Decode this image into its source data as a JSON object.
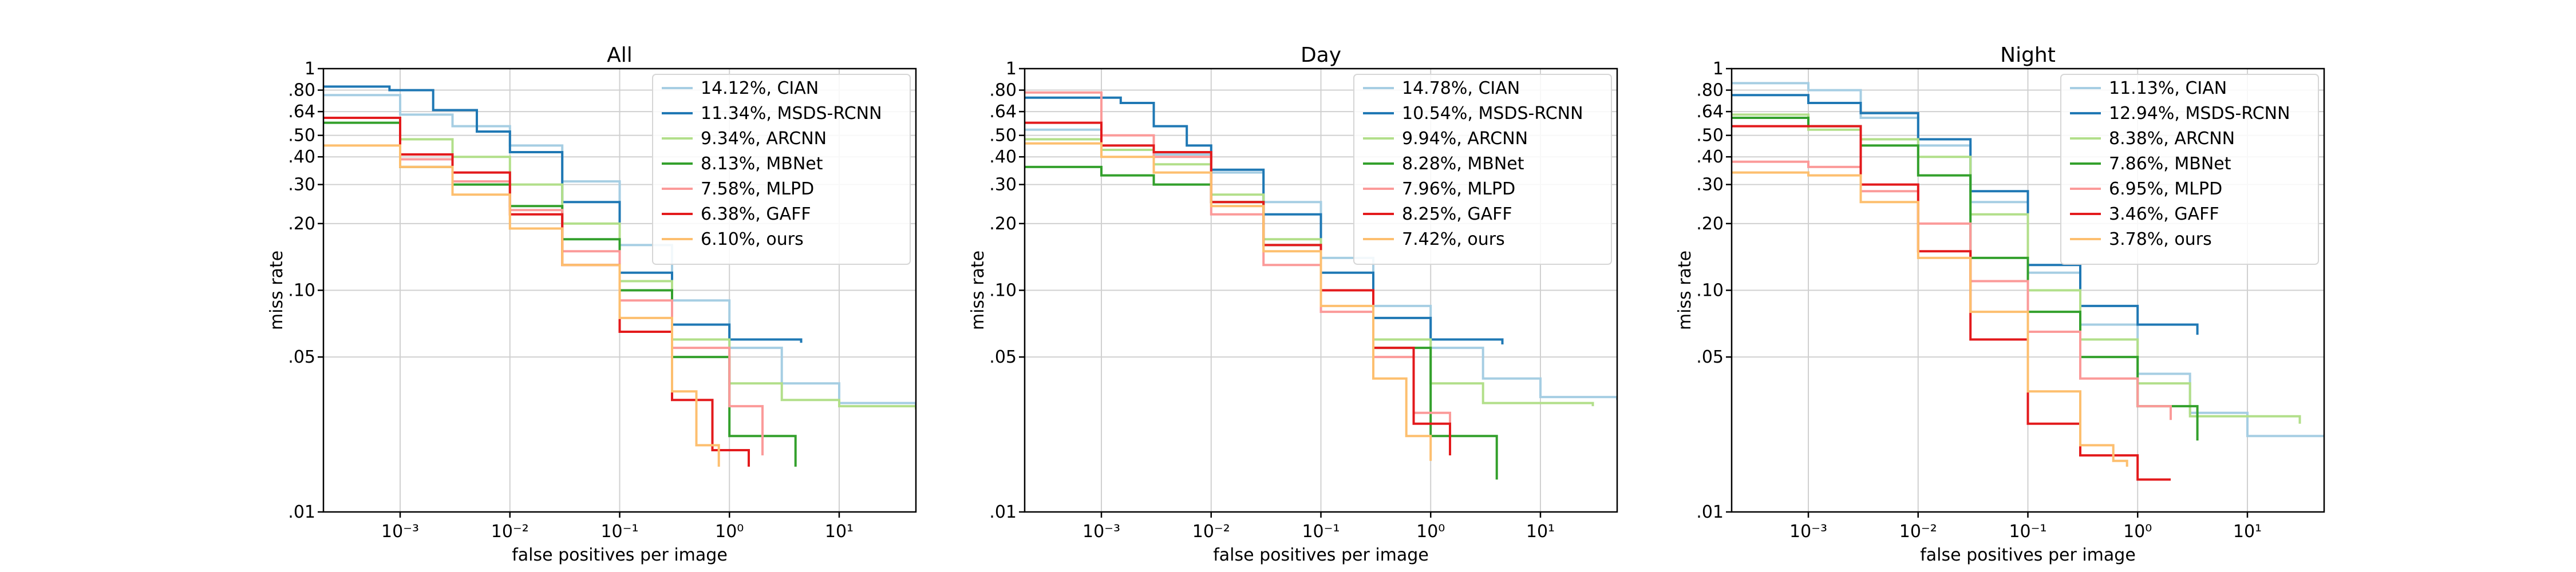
{
  "chart_data": [
    {
      "type": "line",
      "title": "All",
      "xlabel": "false positives per image",
      "ylabel": "miss rate",
      "xscale": "log",
      "yscale": "log",
      "xlim": [
        0.0002,
        50
      ],
      "ylim": [
        0.01,
        1
      ],
      "xticks": [
        0.001,
        0.01,
        0.1,
        1,
        10
      ],
      "xtick_labels": [
        "10⁻³",
        "10⁻²",
        "10⁻¹",
        "10⁰",
        "10¹"
      ],
      "yticks": [
        0.01,
        0.05,
        0.1,
        0.2,
        0.3,
        0.4,
        0.5,
        0.64,
        0.8,
        1
      ],
      "ytick_labels": [
        ".01",
        ".05",
        ".10",
        ".20",
        ".30",
        ".40",
        ".50",
        ".64",
        ".80",
        "1"
      ],
      "grid": true,
      "legend_position": "top-right",
      "series": [
        {
          "name": "14.12%, CIAN",
          "color": "#a6cee3",
          "x": [
            0.0002,
            0.001,
            0.003,
            0.01,
            0.03,
            0.1,
            0.3,
            1,
            3,
            10,
            50
          ],
          "y": [
            0.76,
            0.62,
            0.55,
            0.45,
            0.31,
            0.16,
            0.09,
            0.055,
            0.038,
            0.031,
            0.029
          ]
        },
        {
          "name": "11.34%, MSDS-RCNN",
          "color": "#1f78b4",
          "x": [
            0.0002,
            0.0008,
            0.002,
            0.005,
            0.01,
            0.03,
            0.1,
            0.3,
            1,
            4.5
          ],
          "y": [
            0.83,
            0.8,
            0.65,
            0.52,
            0.42,
            0.25,
            0.12,
            0.07,
            0.06,
            0.058
          ]
        },
        {
          "name": "9.34%, ARCNN",
          "color": "#b2df8a",
          "x": [
            0.0002,
            0.001,
            0.003,
            0.01,
            0.03,
            0.1,
            0.3,
            1,
            3,
            10,
            50
          ],
          "y": [
            0.6,
            0.48,
            0.4,
            0.3,
            0.2,
            0.11,
            0.06,
            0.038,
            0.032,
            0.03,
            0.029
          ]
        },
        {
          "name": "8.13%, MBNet",
          "color": "#33a02c",
          "x": [
            0.0002,
            0.001,
            0.003,
            0.01,
            0.03,
            0.1,
            0.3,
            1,
            4
          ],
          "y": [
            0.57,
            0.36,
            0.3,
            0.24,
            0.17,
            0.1,
            0.05,
            0.022,
            0.016
          ]
        },
        {
          "name": "7.58%, MLPD",
          "color": "#fb9a99",
          "x": [
            0.0002,
            0.001,
            0.003,
            0.01,
            0.03,
            0.1,
            0.3,
            1,
            2
          ],
          "y": [
            0.6,
            0.39,
            0.31,
            0.23,
            0.15,
            0.09,
            0.055,
            0.03,
            0.018
          ]
        },
        {
          "name": "6.38%, GAFF",
          "color": "#e31a1c",
          "x": [
            0.0002,
            0.001,
            0.003,
            0.01,
            0.03,
            0.1,
            0.3,
            0.7,
            1.5
          ],
          "y": [
            0.6,
            0.41,
            0.34,
            0.22,
            0.13,
            0.065,
            0.032,
            0.019,
            0.016
          ]
        },
        {
          "name": "6.10%, ours",
          "color": "#fdbf6f",
          "x": [
            0.0002,
            0.001,
            0.003,
            0.01,
            0.03,
            0.1,
            0.3,
            0.5,
            0.8
          ],
          "y": [
            0.45,
            0.36,
            0.27,
            0.19,
            0.13,
            0.075,
            0.035,
            0.02,
            0.016
          ]
        }
      ]
    },
    {
      "type": "line",
      "title": "Day",
      "xlabel": "false positives per image",
      "ylabel": "miss rate",
      "xscale": "log",
      "yscale": "log",
      "xlim": [
        0.0002,
        50
      ],
      "ylim": [
        0.01,
        1
      ],
      "xticks": [
        0.001,
        0.01,
        0.1,
        1,
        10
      ],
      "xtick_labels": [
        "10⁻³",
        "10⁻²",
        "10⁻¹",
        "10⁰",
        "10¹"
      ],
      "yticks": [
        0.01,
        0.05,
        0.1,
        0.2,
        0.3,
        0.4,
        0.5,
        0.64,
        0.8,
        1
      ],
      "ytick_labels": [
        ".01",
        ".05",
        ".10",
        ".20",
        ".30",
        ".40",
        ".50",
        ".64",
        ".80",
        "1"
      ],
      "grid": true,
      "legend_position": "top-right",
      "series": [
        {
          "name": "14.78%, CIAN",
          "color": "#a6cee3",
          "x": [
            0.0002,
            0.001,
            0.003,
            0.01,
            0.03,
            0.1,
            0.3,
            1,
            3,
            10,
            50
          ],
          "y": [
            0.53,
            0.45,
            0.41,
            0.34,
            0.25,
            0.14,
            0.085,
            0.055,
            0.04,
            0.033,
            0.032
          ]
        },
        {
          "name": "10.54%, MSDS-RCNN",
          "color": "#1f78b4",
          "x": [
            0.0002,
            0.0015,
            0.003,
            0.006,
            0.01,
            0.03,
            0.1,
            0.3,
            1,
            4.5
          ],
          "y": [
            0.74,
            0.7,
            0.55,
            0.45,
            0.35,
            0.22,
            0.12,
            0.075,
            0.06,
            0.057
          ]
        },
        {
          "name": "9.94%, ARCNN",
          "color": "#b2df8a",
          "x": [
            0.0002,
            0.001,
            0.003,
            0.01,
            0.03,
            0.1,
            0.3,
            1,
            3,
            30
          ],
          "y": [
            0.48,
            0.43,
            0.37,
            0.27,
            0.17,
            0.1,
            0.06,
            0.038,
            0.031,
            0.03
          ]
        },
        {
          "name": "8.28%, MBNet",
          "color": "#33a02c",
          "x": [
            0.0002,
            0.001,
            0.003,
            0.01,
            0.03,
            0.1,
            0.3,
            1,
            4
          ],
          "y": [
            0.36,
            0.33,
            0.3,
            0.25,
            0.16,
            0.1,
            0.055,
            0.022,
            0.014
          ]
        },
        {
          "name": "7.96%, MLPD",
          "color": "#fb9a99",
          "x": [
            0.0002,
            0.001,
            0.003,
            0.01,
            0.03,
            0.1,
            0.3,
            0.7,
            1.5
          ],
          "y": [
            0.78,
            0.5,
            0.4,
            0.22,
            0.13,
            0.08,
            0.05,
            0.028,
            0.02
          ]
        },
        {
          "name": "8.25%, GAFF",
          "color": "#e31a1c",
          "x": [
            0.0002,
            0.001,
            0.003,
            0.01,
            0.03,
            0.1,
            0.3,
            0.7,
            1.5
          ],
          "y": [
            0.57,
            0.45,
            0.42,
            0.25,
            0.16,
            0.1,
            0.055,
            0.025,
            0.018
          ]
        },
        {
          "name": "7.42%, ours",
          "color": "#fdbf6f",
          "x": [
            0.0002,
            0.001,
            0.003,
            0.01,
            0.03,
            0.1,
            0.3,
            0.6,
            1.0
          ],
          "y": [
            0.46,
            0.4,
            0.34,
            0.24,
            0.15,
            0.085,
            0.04,
            0.022,
            0.017
          ]
        }
      ]
    },
    {
      "type": "line",
      "title": "Night",
      "xlabel": "false positives per image",
      "ylabel": "miss rate",
      "xscale": "log",
      "yscale": "log",
      "xlim": [
        0.0002,
        50
      ],
      "ylim": [
        0.01,
        1
      ],
      "xticks": [
        0.001,
        0.01,
        0.1,
        1,
        10
      ],
      "xtick_labels": [
        "10⁻³",
        "10⁻²",
        "10⁻¹",
        "10⁰",
        "10¹"
      ],
      "yticks": [
        0.01,
        0.05,
        0.1,
        0.2,
        0.3,
        0.4,
        0.5,
        0.64,
        0.8,
        1
      ],
      "ytick_labels": [
        ".01",
        ".05",
        ".10",
        ".20",
        ".30",
        ".40",
        ".50",
        ".64",
        ".80",
        "1"
      ],
      "grid": true,
      "legend_position": "top-right",
      "series": [
        {
          "name": "11.13%, CIAN",
          "color": "#a6cee3",
          "x": [
            0.0002,
            0.001,
            0.003,
            0.01,
            0.03,
            0.1,
            0.3,
            1,
            3,
            10,
            50
          ],
          "y": [
            0.86,
            0.8,
            0.6,
            0.45,
            0.25,
            0.12,
            0.07,
            0.042,
            0.028,
            0.022,
            0.022
          ]
        },
        {
          "name": "12.94%, MSDS-RCNN",
          "color": "#1f78b4",
          "x": [
            0.0002,
            0.001,
            0.003,
            0.01,
            0.03,
            0.1,
            0.3,
            1,
            3.5
          ],
          "y": [
            0.76,
            0.7,
            0.63,
            0.48,
            0.28,
            0.13,
            0.085,
            0.07,
            0.063
          ]
        },
        {
          "name": "8.38%, ARCNN",
          "color": "#b2df8a",
          "x": [
            0.0002,
            0.001,
            0.003,
            0.01,
            0.03,
            0.1,
            0.3,
            1,
            3,
            30
          ],
          "y": [
            0.62,
            0.53,
            0.48,
            0.4,
            0.22,
            0.1,
            0.06,
            0.038,
            0.027,
            0.025
          ]
        },
        {
          "name": "7.86%, MBNet",
          "color": "#33a02c",
          "x": [
            0.0002,
            0.001,
            0.003,
            0.01,
            0.03,
            0.1,
            0.3,
            1,
            3.5
          ],
          "y": [
            0.6,
            0.55,
            0.45,
            0.33,
            0.14,
            0.08,
            0.05,
            0.03,
            0.021
          ]
        },
        {
          "name": "6.95%, MLPD",
          "color": "#fb9a99",
          "x": [
            0.0002,
            0.001,
            0.003,
            0.01,
            0.03,
            0.1,
            0.3,
            1,
            2
          ],
          "y": [
            0.38,
            0.36,
            0.28,
            0.2,
            0.11,
            0.065,
            0.04,
            0.03,
            0.026
          ]
        },
        {
          "name": "3.46%, GAFF",
          "color": "#e31a1c",
          "x": [
            0.0002,
            0.001,
            0.003,
            0.01,
            0.03,
            0.1,
            0.3,
            1,
            2
          ],
          "y": [
            0.55,
            0.55,
            0.3,
            0.15,
            0.06,
            0.025,
            0.018,
            0.014,
            0.014
          ]
        },
        {
          "name": "3.78%, ours",
          "color": "#fdbf6f",
          "x": [
            0.0002,
            0.001,
            0.003,
            0.01,
            0.03,
            0.1,
            0.3,
            0.6,
            0.8
          ],
          "y": [
            0.34,
            0.33,
            0.25,
            0.14,
            0.08,
            0.035,
            0.02,
            0.017,
            0.016
          ]
        }
      ]
    }
  ]
}
